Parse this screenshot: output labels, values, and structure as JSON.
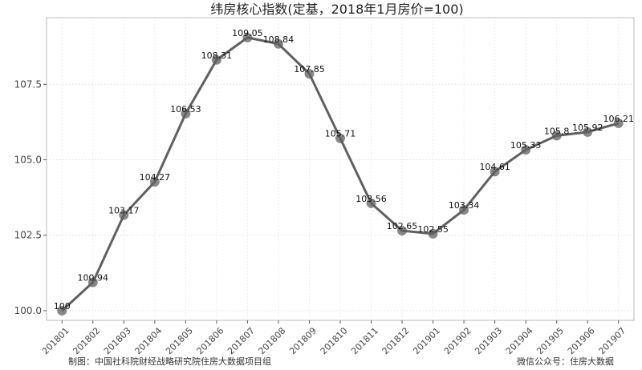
{
  "chart_data": {
    "type": "line",
    "title": "纬房核心指数(定基，2018年1月房价=100)",
    "categories": [
      "201801",
      "201802",
      "201803",
      "201804",
      "201805",
      "201806",
      "201807",
      "201808",
      "201809",
      "201810",
      "201811",
      "201812",
      "201901",
      "201902",
      "201903",
      "201904",
      "201905",
      "201906",
      "201907"
    ],
    "series": [
      {
        "color": "#606060",
        "values": [
          100,
          100.94,
          103.17,
          104.27,
          106.53,
          108.31,
          109.05,
          108.84,
          107.85,
          105.71,
          103.56,
          102.65,
          102.55,
          103.34,
          104.61,
          105.33,
          105.8,
          105.92,
          106.21
        ]
      }
    ],
    "ylim": [
      99.68,
      109.71
    ],
    "yticks": [
      {
        "value": 100,
        "label": "100.0"
      },
      {
        "value": 102.5,
        "label": "102.5"
      },
      {
        "value": 105,
        "label": "105.0"
      },
      {
        "value": 107.5,
        "label": "107.5"
      }
    ],
    "grid": true
  },
  "footer": {
    "left": "制图：中国社科院财经战略研究院住房大数据项目组",
    "right": "微信公众号：住房大数据"
  }
}
